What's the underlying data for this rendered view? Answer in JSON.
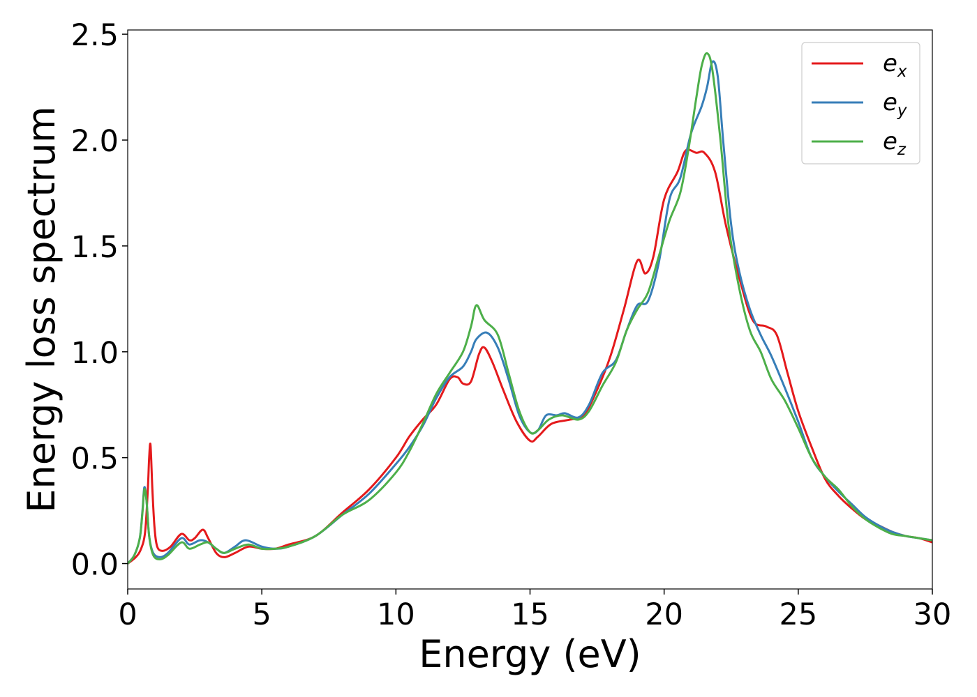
{
  "chart_data": {
    "type": "line",
    "title": "",
    "xlabel": "Energy (eV)",
    "ylabel": "Energy loss spectrum",
    "xlim": [
      0,
      30
    ],
    "ylim": [
      -0.12,
      2.52
    ],
    "xticks": [
      0,
      5,
      10,
      15,
      20,
      25,
      30
    ],
    "xtick_labels": [
      "0",
      "5",
      "10",
      "15",
      "20",
      "25",
      "30"
    ],
    "yticks": [
      0.0,
      0.5,
      1.0,
      1.5,
      2.0,
      2.5
    ],
    "ytick_labels": [
      "0.0",
      "0.5",
      "1.0",
      "1.5",
      "2.0",
      "2.5"
    ],
    "grid": false,
    "legend_position": "top-right",
    "series": [
      {
        "name": "e",
        "subscript": "x",
        "color": "#e41a1c",
        "points": [
          [
            0,
            0
          ],
          [
            0.3,
            0.03
          ],
          [
            0.5,
            0.07
          ],
          [
            0.65,
            0.15
          ],
          [
            0.75,
            0.35
          ],
          [
            0.8,
            0.5
          ],
          [
            0.85,
            0.56
          ],
          [
            0.92,
            0.35
          ],
          [
            1.0,
            0.17
          ],
          [
            1.1,
            0.08
          ],
          [
            1.3,
            0.06
          ],
          [
            1.6,
            0.08
          ],
          [
            2.0,
            0.14
          ],
          [
            2.3,
            0.11
          ],
          [
            2.5,
            0.12
          ],
          [
            2.8,
            0.16
          ],
          [
            3.0,
            0.12
          ],
          [
            3.3,
            0.05
          ],
          [
            3.6,
            0.03
          ],
          [
            4.0,
            0.05
          ],
          [
            4.5,
            0.08
          ],
          [
            5.0,
            0.07
          ],
          [
            5.5,
            0.07
          ],
          [
            6.0,
            0.09
          ],
          [
            7.0,
            0.13
          ],
          [
            8.0,
            0.24
          ],
          [
            9.0,
            0.35
          ],
          [
            10.0,
            0.5
          ],
          [
            10.5,
            0.6
          ],
          [
            11.0,
            0.68
          ],
          [
            11.5,
            0.75
          ],
          [
            12.0,
            0.87
          ],
          [
            12.3,
            0.88
          ],
          [
            12.5,
            0.85
          ],
          [
            12.8,
            0.86
          ],
          [
            13.1,
            0.99
          ],
          [
            13.3,
            1.02
          ],
          [
            13.6,
            0.95
          ],
          [
            14.0,
            0.82
          ],
          [
            14.5,
            0.67
          ],
          [
            15.0,
            0.58
          ],
          [
            15.3,
            0.6
          ],
          [
            15.8,
            0.66
          ],
          [
            16.5,
            0.68
          ],
          [
            17.0,
            0.7
          ],
          [
            17.5,
            0.82
          ],
          [
            18.0,
            0.98
          ],
          [
            18.5,
            1.2
          ],
          [
            19.0,
            1.43
          ],
          [
            19.3,
            1.37
          ],
          [
            19.6,
            1.45
          ],
          [
            20.0,
            1.72
          ],
          [
            20.5,
            1.85
          ],
          [
            20.8,
            1.95
          ],
          [
            21.2,
            1.94
          ],
          [
            21.5,
            1.94
          ],
          [
            21.9,
            1.85
          ],
          [
            22.3,
            1.6
          ],
          [
            22.8,
            1.35
          ],
          [
            23.3,
            1.15
          ],
          [
            23.8,
            1.12
          ],
          [
            24.2,
            1.08
          ],
          [
            24.6,
            0.9
          ],
          [
            25.0,
            0.72
          ],
          [
            25.5,
            0.55
          ],
          [
            26.0,
            0.4
          ],
          [
            26.5,
            0.32
          ],
          [
            27.0,
            0.26
          ],
          [
            27.5,
            0.21
          ],
          [
            28.0,
            0.18
          ],
          [
            28.5,
            0.15
          ],
          [
            29.0,
            0.13
          ],
          [
            29.5,
            0.12
          ],
          [
            30.0,
            0.1
          ]
        ]
      },
      {
        "name": "e",
        "subscript": "y",
        "color": "#377eb8",
        "points": [
          [
            0,
            0
          ],
          [
            0.25,
            0.04
          ],
          [
            0.45,
            0.12
          ],
          [
            0.55,
            0.25
          ],
          [
            0.62,
            0.36
          ],
          [
            0.7,
            0.3
          ],
          [
            0.8,
            0.13
          ],
          [
            0.95,
            0.05
          ],
          [
            1.2,
            0.03
          ],
          [
            1.5,
            0.05
          ],
          [
            2.0,
            0.12
          ],
          [
            2.3,
            0.09
          ],
          [
            2.7,
            0.11
          ],
          [
            3.0,
            0.1
          ],
          [
            3.3,
            0.07
          ],
          [
            3.6,
            0.05
          ],
          [
            4.0,
            0.08
          ],
          [
            4.4,
            0.11
          ],
          [
            5.0,
            0.08
          ],
          [
            5.5,
            0.07
          ],
          [
            6.0,
            0.08
          ],
          [
            7.0,
            0.13
          ],
          [
            8.0,
            0.23
          ],
          [
            9.0,
            0.33
          ],
          [
            10.0,
            0.47
          ],
          [
            10.5,
            0.55
          ],
          [
            11.0,
            0.65
          ],
          [
            11.5,
            0.78
          ],
          [
            12.0,
            0.88
          ],
          [
            12.5,
            0.93
          ],
          [
            12.8,
            1.0
          ],
          [
            13.0,
            1.06
          ],
          [
            13.4,
            1.09
          ],
          [
            13.8,
            1.02
          ],
          [
            14.2,
            0.87
          ],
          [
            14.6,
            0.7
          ],
          [
            15.0,
            0.62
          ],
          [
            15.3,
            0.63
          ],
          [
            15.6,
            0.7
          ],
          [
            16.0,
            0.7
          ],
          [
            16.3,
            0.71
          ],
          [
            16.8,
            0.69
          ],
          [
            17.2,
            0.75
          ],
          [
            17.7,
            0.9
          ],
          [
            18.2,
            0.96
          ],
          [
            18.6,
            1.1
          ],
          [
            19.0,
            1.22
          ],
          [
            19.4,
            1.24
          ],
          [
            19.8,
            1.42
          ],
          [
            20.2,
            1.72
          ],
          [
            20.6,
            1.82
          ],
          [
            21.0,
            2.03
          ],
          [
            21.4,
            2.16
          ],
          [
            21.6,
            2.25
          ],
          [
            21.8,
            2.37
          ],
          [
            22.0,
            2.3
          ],
          [
            22.2,
            2.0
          ],
          [
            22.5,
            1.6
          ],
          [
            22.8,
            1.38
          ],
          [
            23.2,
            1.2
          ],
          [
            23.6,
            1.08
          ],
          [
            24.0,
            0.98
          ],
          [
            24.5,
            0.83
          ],
          [
            25.0,
            0.67
          ],
          [
            25.5,
            0.5
          ],
          [
            26.0,
            0.41
          ],
          [
            26.5,
            0.34
          ],
          [
            27.0,
            0.28
          ],
          [
            27.5,
            0.22
          ],
          [
            28.0,
            0.18
          ],
          [
            28.5,
            0.15
          ],
          [
            29.0,
            0.13
          ],
          [
            29.5,
            0.12
          ],
          [
            30.0,
            0.11
          ]
        ]
      },
      {
        "name": "e",
        "subscript": "z",
        "color": "#4daf4a",
        "points": [
          [
            0,
            0
          ],
          [
            0.25,
            0.04
          ],
          [
            0.45,
            0.12
          ],
          [
            0.55,
            0.24
          ],
          [
            0.62,
            0.35
          ],
          [
            0.7,
            0.3
          ],
          [
            0.8,
            0.13
          ],
          [
            0.95,
            0.04
          ],
          [
            1.2,
            0.02
          ],
          [
            1.5,
            0.04
          ],
          [
            2.0,
            0.1
          ],
          [
            2.3,
            0.07
          ],
          [
            2.7,
            0.09
          ],
          [
            3.0,
            0.1
          ],
          [
            3.3,
            0.07
          ],
          [
            3.6,
            0.05
          ],
          [
            4.0,
            0.07
          ],
          [
            4.5,
            0.09
          ],
          [
            5.0,
            0.07
          ],
          [
            5.5,
            0.07
          ],
          [
            6.0,
            0.08
          ],
          [
            7.0,
            0.13
          ],
          [
            8.0,
            0.23
          ],
          [
            9.0,
            0.3
          ],
          [
            10.0,
            0.43
          ],
          [
            10.5,
            0.53
          ],
          [
            11.0,
            0.66
          ],
          [
            11.5,
            0.8
          ],
          [
            12.0,
            0.9
          ],
          [
            12.5,
            1.0
          ],
          [
            12.8,
            1.12
          ],
          [
            13.0,
            1.22
          ],
          [
            13.3,
            1.15
          ],
          [
            13.8,
            1.08
          ],
          [
            14.2,
            0.9
          ],
          [
            14.6,
            0.72
          ],
          [
            15.0,
            0.62
          ],
          [
            15.3,
            0.63
          ],
          [
            15.7,
            0.68
          ],
          [
            16.2,
            0.7
          ],
          [
            16.8,
            0.68
          ],
          [
            17.2,
            0.72
          ],
          [
            17.7,
            0.84
          ],
          [
            18.2,
            0.95
          ],
          [
            18.6,
            1.1
          ],
          [
            19.0,
            1.2
          ],
          [
            19.4,
            1.28
          ],
          [
            19.8,
            1.45
          ],
          [
            20.2,
            1.62
          ],
          [
            20.6,
            1.75
          ],
          [
            20.9,
            1.95
          ],
          [
            21.2,
            2.2
          ],
          [
            21.4,
            2.35
          ],
          [
            21.6,
            2.41
          ],
          [
            21.8,
            2.33
          ],
          [
            22.1,
            2.0
          ],
          [
            22.4,
            1.6
          ],
          [
            22.8,
            1.3
          ],
          [
            23.2,
            1.1
          ],
          [
            23.6,
            1.0
          ],
          [
            24.0,
            0.87
          ],
          [
            24.5,
            0.77
          ],
          [
            25.0,
            0.64
          ],
          [
            25.5,
            0.5
          ],
          [
            26.0,
            0.41
          ],
          [
            26.5,
            0.35
          ],
          [
            27.0,
            0.27
          ],
          [
            27.5,
            0.21
          ],
          [
            28.0,
            0.17
          ],
          [
            28.5,
            0.14
          ],
          [
            29.0,
            0.13
          ],
          [
            29.5,
            0.12
          ],
          [
            30.0,
            0.11
          ]
        ]
      }
    ]
  }
}
